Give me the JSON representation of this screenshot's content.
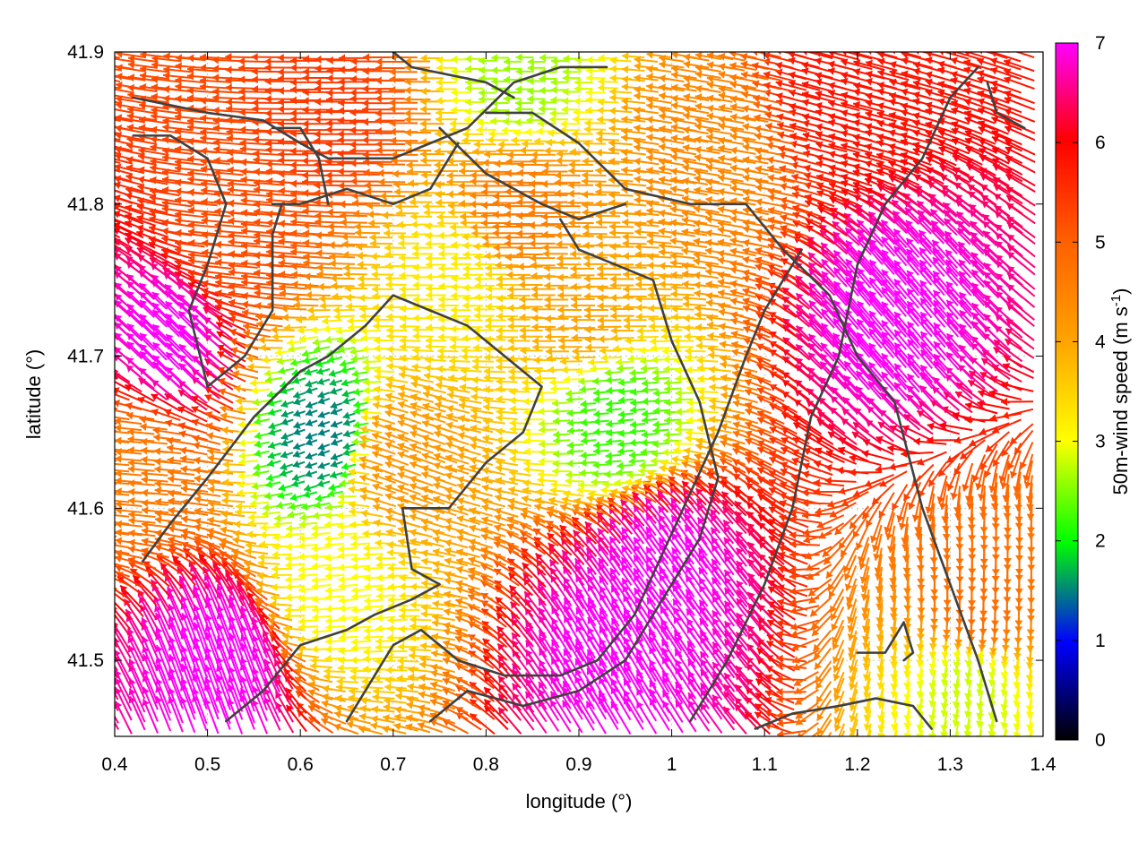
{
  "chart_data": {
    "type": "vector-field",
    "title": "",
    "xlabel": "longitude (°)",
    "ylabel": "latitude (°)",
    "colorbar_label": "50m-wind speed (m s",
    "colorbar_label_superscript": "-1",
    "colorbar_label_suffix": ")",
    "xlim": [
      0.4,
      1.4
    ],
    "ylim": [
      41.45,
      41.9
    ],
    "xticks": [
      "0.4",
      "0.5",
      "0.6",
      "0.7",
      "0.8",
      "0.9",
      "1",
      "1.1",
      "1.2",
      "1.3",
      "1.4"
    ],
    "yticks": [
      "41.5",
      "41.6",
      "41.7",
      "41.8",
      "41.9"
    ],
    "colorbar_range": [
      0,
      7
    ],
    "colorbar_ticks": [
      "0",
      "1",
      "2",
      "3",
      "4",
      "5",
      "6",
      "7"
    ],
    "colormap": [
      "#000000",
      "#0000ff",
      "#00ff00",
      "#ffff00",
      "#ffa500",
      "#ff6000",
      "#ff0000",
      "#ff00ff"
    ],
    "grid": true,
    "coastline_color": "#404040",
    "wind_regions": [
      {
        "lon": 0.47,
        "lat": 41.7,
        "speed": 7.0,
        "direction_deg": 135
      },
      {
        "lon": 0.52,
        "lat": 41.49,
        "speed": 7.0,
        "direction_deg": 110
      },
      {
        "lon": 1.0,
        "lat": 41.55,
        "speed": 7.0,
        "direction_deg": 125
      },
      {
        "lon": 1.25,
        "lat": 41.72,
        "speed": 7.0,
        "direction_deg": 130
      },
      {
        "lon": 0.95,
        "lat": 41.5,
        "speed": 7.0,
        "direction_deg": 120
      },
      {
        "lon": 0.65,
        "lat": 41.86,
        "speed": 5.4,
        "direction_deg": 180
      },
      {
        "lon": 1.2,
        "lat": 41.87,
        "speed": 5.8,
        "direction_deg": 165
      },
      {
        "lon": 0.55,
        "lat": 41.78,
        "speed": 5.2,
        "direction_deg": 175
      },
      {
        "lon": 0.85,
        "lat": 41.8,
        "speed": 4.6,
        "direction_deg": 180
      },
      {
        "lon": 0.92,
        "lat": 41.73,
        "speed": 4.0,
        "direction_deg": 180
      },
      {
        "lon": 0.78,
        "lat": 41.75,
        "speed": 3.2,
        "direction_deg": 180
      },
      {
        "lon": 0.95,
        "lat": 41.66,
        "speed": 2.2,
        "direction_deg": 185
      },
      {
        "lon": 0.63,
        "lat": 41.65,
        "speed": 1.5,
        "direction_deg": 200
      },
      {
        "lon": 0.72,
        "lat": 41.63,
        "speed": 4.2,
        "direction_deg": 160
      },
      {
        "lon": 0.44,
        "lat": 41.63,
        "speed": 4.6,
        "direction_deg": 175
      },
      {
        "lon": 1.33,
        "lat": 41.55,
        "speed": 4.8,
        "direction_deg": 270
      },
      {
        "lon": 1.32,
        "lat": 41.49,
        "speed": 2.8,
        "direction_deg": 260
      },
      {
        "lon": 0.65,
        "lat": 41.55,
        "speed": 3.0,
        "direction_deg": 185
      },
      {
        "lon": 1.06,
        "lat": 41.83,
        "speed": 4.4,
        "direction_deg": 170
      },
      {
        "lon": 0.85,
        "lat": 41.88,
        "speed": 2.6,
        "direction_deg": 180
      }
    ],
    "coastlines": [
      [
        [
          0.42,
          41.87
        ],
        [
          0.5,
          41.86
        ],
        [
          0.56,
          41.855
        ],
        [
          0.6,
          41.84
        ],
        [
          0.63,
          41.83
        ],
        [
          0.7,
          41.83
        ],
        [
          0.74,
          41.84
        ],
        [
          0.78,
          41.85
        ],
        [
          0.83,
          41.88
        ],
        [
          0.88,
          41.89
        ],
        [
          0.93,
          41.89
        ]
      ],
      [
        [
          0.42,
          41.845
        ],
        [
          0.46,
          41.845
        ],
        [
          0.5,
          41.83
        ],
        [
          0.52,
          41.8
        ],
        [
          0.5,
          41.76
        ],
        [
          0.48,
          41.73
        ],
        [
          0.5,
          41.68
        ]
      ],
      [
        [
          0.7,
          41.9
        ],
        [
          0.72,
          41.89
        ],
        [
          0.76,
          41.885
        ],
        [
          0.8,
          41.88
        ],
        [
          0.83,
          41.87
        ]
      ],
      [
        [
          0.57,
          41.85
        ],
        [
          0.6,
          41.85
        ],
        [
          0.62,
          41.83
        ],
        [
          0.63,
          41.8
        ]
      ],
      [
        [
          0.8,
          41.86
        ],
        [
          0.85,
          41.86
        ],
        [
          0.9,
          41.84
        ],
        [
          0.95,
          41.81
        ],
        [
          1.02,
          41.8
        ],
        [
          1.08,
          41.8
        ],
        [
          1.12,
          41.77
        ],
        [
          1.17,
          41.74
        ],
        [
          1.2,
          41.7
        ],
        [
          1.24,
          41.67
        ],
        [
          1.27,
          41.6
        ],
        [
          1.3,
          41.55
        ],
        [
          1.33,
          41.5
        ],
        [
          1.35,
          41.46
        ]
      ],
      [
        [
          0.75,
          41.85
        ],
        [
          0.8,
          41.82
        ],
        [
          0.86,
          41.8
        ],
        [
          0.9,
          41.79
        ],
        [
          0.95,
          41.8
        ]
      ],
      [
        [
          0.88,
          41.79
        ],
        [
          0.9,
          41.77
        ],
        [
          0.94,
          41.76
        ],
        [
          0.98,
          41.75
        ],
        [
          1.0,
          41.71
        ],
        [
          1.03,
          41.67
        ],
        [
          1.05,
          41.62
        ],
        [
          1.03,
          41.58
        ],
        [
          0.99,
          41.54
        ],
        [
          0.95,
          41.5
        ],
        [
          0.9,
          41.48
        ],
        [
          0.84,
          41.47
        ],
        [
          0.78,
          41.48
        ],
        [
          0.74,
          41.46
        ]
      ],
      [
        [
          0.74,
          41.73
        ],
        [
          0.7,
          41.74
        ],
        [
          0.67,
          41.72
        ],
        [
          0.63,
          41.7
        ],
        [
          0.6,
          41.69
        ],
        [
          0.55,
          41.66
        ],
        [
          0.5,
          41.62
        ],
        [
          0.46,
          41.59
        ],
        [
          0.43,
          41.565
        ]
      ],
      [
        [
          0.74,
          41.73
        ],
        [
          0.78,
          41.72
        ],
        [
          0.82,
          41.7
        ],
        [
          0.86,
          41.68
        ],
        [
          0.84,
          41.65
        ],
        [
          0.8,
          41.63
        ],
        [
          0.76,
          41.6
        ],
        [
          0.71,
          41.6
        ],
        [
          0.72,
          41.56
        ],
        [
          0.75,
          41.55
        ],
        [
          0.72,
          41.54
        ],
        [
          0.68,
          41.53
        ],
        [
          0.65,
          41.52
        ],
        [
          0.6,
          41.51
        ],
        [
          0.56,
          41.48
        ],
        [
          0.52,
          41.46
        ]
      ],
      [
        [
          0.57,
          41.8
        ],
        [
          0.6,
          41.8
        ],
        [
          0.65,
          41.81
        ],
        [
          0.7,
          41.8
        ],
        [
          0.74,
          41.81
        ],
        [
          0.77,
          41.84
        ]
      ],
      [
        [
          0.5,
          41.68
        ],
        [
          0.54,
          41.7
        ],
        [
          0.57,
          41.73
        ],
        [
          0.57,
          41.78
        ],
        [
          0.58,
          41.8
        ]
      ],
      [
        [
          0.65,
          41.46
        ],
        [
          0.68,
          41.49
        ],
        [
          0.7,
          41.51
        ],
        [
          0.73,
          41.52
        ],
        [
          0.77,
          41.5
        ],
        [
          0.82,
          41.49
        ],
        [
          0.88,
          41.49
        ],
        [
          0.92,
          41.5
        ],
        [
          0.96,
          41.53
        ],
        [
          0.99,
          41.57
        ],
        [
          1.02,
          41.61
        ],
        [
          1.05,
          41.65
        ],
        [
          1.08,
          41.7
        ],
        [
          1.1,
          41.73
        ],
        [
          1.12,
          41.75
        ],
        [
          1.14,
          41.77
        ]
      ],
      [
        [
          1.02,
          41.46
        ],
        [
          1.06,
          41.5
        ],
        [
          1.1,
          41.55
        ],
        [
          1.13,
          41.6
        ],
        [
          1.15,
          41.66
        ],
        [
          1.18,
          41.7
        ],
        [
          1.2,
          41.76
        ],
        [
          1.23,
          41.8
        ],
        [
          1.27,
          41.83
        ],
        [
          1.3,
          41.87
        ],
        [
          1.33,
          41.89
        ]
      ],
      [
        [
          1.09,
          41.455
        ],
        [
          1.13,
          41.465
        ],
        [
          1.18,
          41.47
        ],
        [
          1.22,
          41.475
        ],
        [
          1.26,
          41.47
        ],
        [
          1.28,
          41.455
        ]
      ],
      [
        [
          1.2,
          41.505
        ],
        [
          1.23,
          41.505
        ],
        [
          1.25,
          41.525
        ],
        [
          1.26,
          41.505
        ],
        [
          1.25,
          41.5
        ]
      ],
      [
        [
          1.34,
          41.88
        ],
        [
          1.35,
          41.86
        ],
        [
          1.38,
          41.85
        ]
      ]
    ]
  }
}
